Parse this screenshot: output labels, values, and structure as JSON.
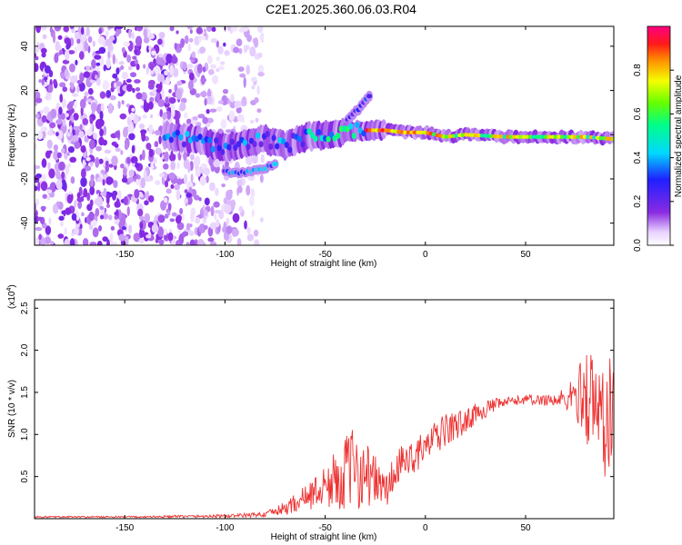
{
  "title": "C2E1.2025.360.06.03.R04",
  "chart_data": [
    {
      "type": "heatmap",
      "xlabel": "Height of straight line (km)",
      "ylabel": "Frequency (Hz)",
      "xlim": [
        -195,
        94
      ],
      "ylim": [
        -50,
        49
      ],
      "xticks": [
        -150,
        -100,
        -50,
        0,
        50
      ],
      "yticks": [
        -40,
        -20,
        0,
        20,
        40
      ],
      "colorbar": {
        "label": "Normalized spectral amplitude",
        "range": [
          0.0,
          1.0
        ],
        "ticks": [
          0.0,
          0.2,
          0.4,
          0.6,
          0.8
        ],
        "tick_labels": [
          "0.0",
          "0.2",
          "0.4",
          "0.6",
          "0.8"
        ],
        "colormap": "rainbow (white, purple, blue, cyan, green, yellow, orange, red, magenta)"
      },
      "features": {
        "noise_region_x": [
          -195,
          -85
        ],
        "main_ridge": {
          "x": [
            -130,
            -110,
            -100,
            -90,
            -80,
            -70,
            -60,
            -50,
            -40,
            -30,
            -20,
            -10,
            0,
            10,
            20,
            40,
            60,
            80,
            94
          ],
          "frequency_hz": [
            0,
            -3,
            -6,
            -4,
            -2,
            -5,
            -1,
            0,
            1,
            2,
            2,
            1,
            1,
            -1,
            0,
            -1,
            -1,
            -1,
            -2
          ]
        },
        "lower_branch": {
          "x": [
            -100,
            -90,
            -80,
            -75
          ],
          "frequency_hz": [
            -17,
            -17,
            -15,
            -13
          ]
        },
        "upper_branch": {
          "x": [
            -40,
            -35,
            -30,
            -28
          ],
          "frequency_hz": [
            5,
            10,
            15,
            17
          ]
        }
      }
    },
    {
      "type": "line",
      "xlabel": "Height of straight line (km)",
      "ylabel": "SNR (10 * v/v)",
      "y_multiplier_label": "(x10",
      "y_multiplier_exp": "4",
      "xlim": [
        -195,
        94
      ],
      "ylim": [
        0,
        2.6
      ],
      "xticks": [
        -150,
        -100,
        -50,
        0,
        50
      ],
      "yticks": [
        0.5,
        1.0,
        1.5,
        2.0,
        2.5
      ],
      "ytick_labels": [
        "0.5",
        "1.0",
        "1.5",
        "2.0",
        "2.5"
      ],
      "series": [
        {
          "color": "#ee3333",
          "x": [
            -195,
            -150,
            -100,
            -80,
            -70,
            -60,
            -50,
            -45,
            -40,
            -35,
            -30,
            -25,
            -22,
            -20,
            -15,
            -10,
            -5,
            0,
            5,
            10,
            15,
            20,
            25,
            30,
            35,
            40,
            45,
            50,
            55,
            60,
            65,
            70,
            75,
            80,
            85,
            90,
            94
          ],
          "y": [
            0.02,
            0.02,
            0.03,
            0.05,
            0.12,
            0.25,
            0.38,
            0.45,
            0.55,
            0.6,
            0.55,
            0.45,
            0.4,
            0.3,
            0.55,
            0.7,
            0.75,
            0.85,
            0.95,
            1.05,
            1.1,
            1.15,
            1.25,
            1.3,
            1.35,
            1.38,
            1.4,
            1.42,
            1.4,
            1.42,
            1.4,
            1.42,
            1.45,
            1.5,
            1.3,
            1.2,
            1.25
          ],
          "noise_amplitude": [
            0.01,
            0.01,
            0.02,
            0.03,
            0.08,
            0.15,
            0.25,
            0.35,
            0.45,
            0.5,
            0.4,
            0.3,
            0.25,
            0.25,
            0.25,
            0.2,
            0.2,
            0.2,
            0.2,
            0.2,
            0.18,
            0.15,
            0.12,
            0.1,
            0.08,
            0.06,
            0.06,
            0.06,
            0.06,
            0.08,
            0.1,
            0.15,
            0.25,
            0.6,
            0.7,
            0.8,
            0.6
          ]
        }
      ]
    }
  ]
}
